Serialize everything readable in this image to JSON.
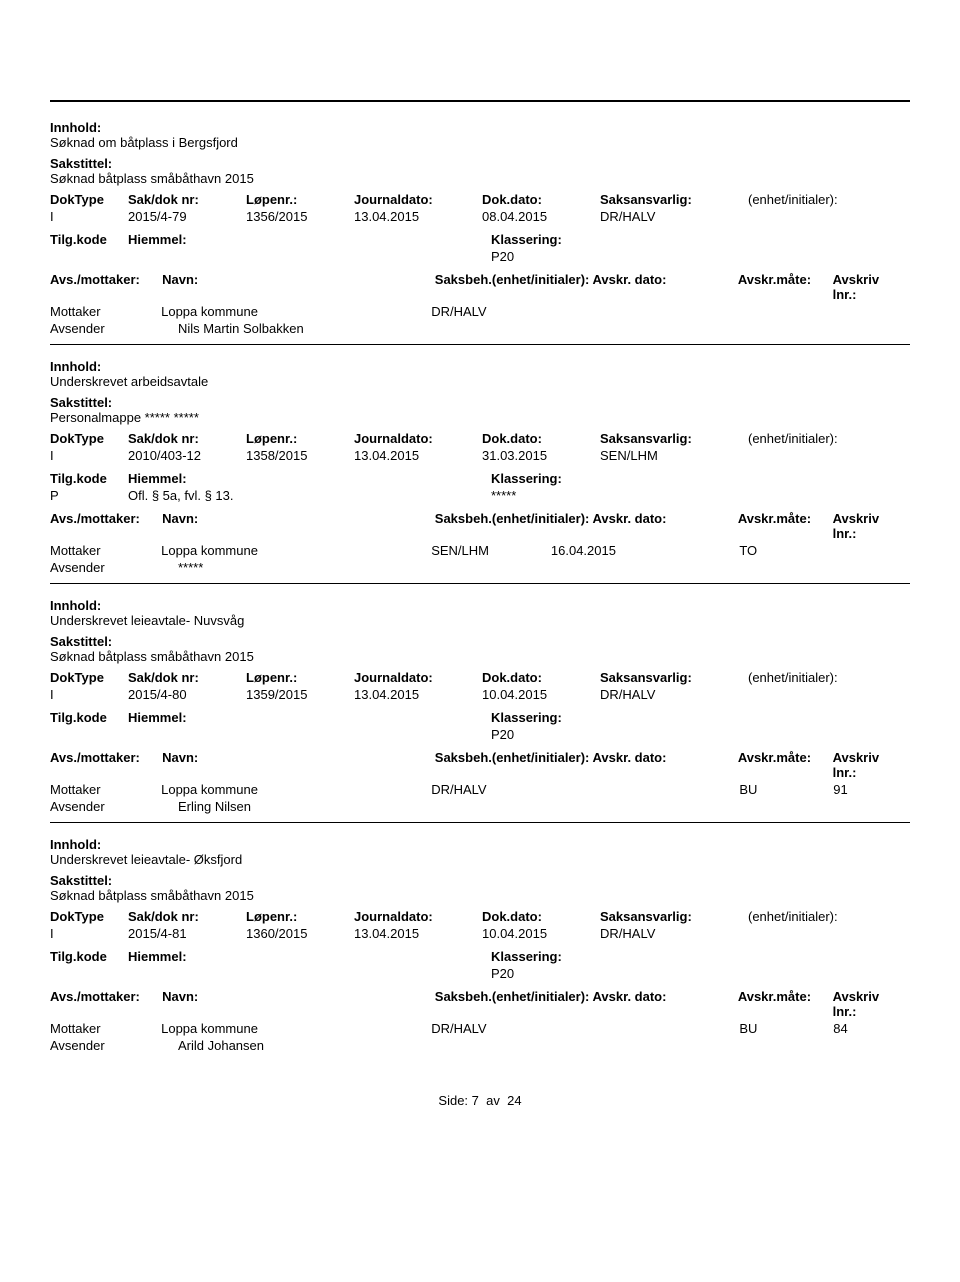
{
  "labels": {
    "innhold": "Innhold:",
    "sakstittel": "Sakstittel:",
    "doktype": "DokType",
    "sakdok": "Sak/dok nr:",
    "lopenr": "Løpenr.:",
    "journaldato": "Journaldato:",
    "dokdato": "Dok.dato:",
    "saksansvarlig": "Saksansvarlig:",
    "enhet": "(enhet/initialer):",
    "tilgkode": "Tilg.kode",
    "hiemmel": "Hiemmel:",
    "klassering": "Klassering:",
    "avsmottaker": "Avs./mottaker:",
    "navn": "Navn:",
    "saksbeh_full": "Saksbeh.(enhet/initialer): Avskr. dato:",
    "avskrmate": "Avskr.måte:",
    "avskrivlnr": "Avskriv lnr.:",
    "mottaker": "Mottaker",
    "avsender": "Avsender"
  },
  "entries": [
    {
      "innhold": "Søknad om båtplass i Bergsfjord",
      "sakstittel": "Søknad båtplass småbåthavn 2015",
      "doktype": "I",
      "sakdok": "2015/4-79",
      "lopenr": "1356/2015",
      "journaldato": "13.04.2015",
      "dokdato": "08.04.2015",
      "saksansvarlig": "DR/HALV",
      "tilgkode": "",
      "hiemmel": "",
      "klassering": "P20",
      "saksbeh": "DR/HALV",
      "avskr_dato": "",
      "avskr_mate": "",
      "avskr_lnr": "",
      "mottaker_navn": "Loppa kommune",
      "avsender_navn": "Nils Martin Solbakken"
    },
    {
      "innhold": "Underskrevet arbeidsavtale",
      "sakstittel": "Personalmappe ***** *****",
      "doktype": "I",
      "sakdok": "2010/403-12",
      "lopenr": "1358/2015",
      "journaldato": "13.04.2015",
      "dokdato": "31.03.2015",
      "saksansvarlig": "SEN/LHM",
      "tilgkode": "P",
      "hiemmel": "Ofl. § 5a, fvl. § 13.",
      "klassering": "*****",
      "saksbeh": "SEN/LHM",
      "avskr_dato": "16.04.2015",
      "avskr_mate": "TO",
      "avskr_lnr": "",
      "mottaker_navn": "Loppa kommune",
      "avsender_navn": "*****"
    },
    {
      "innhold": "Underskrevet leieavtale- Nuvsvåg",
      "sakstittel": "Søknad båtplass småbåthavn 2015",
      "doktype": "I",
      "sakdok": "2015/4-80",
      "lopenr": "1359/2015",
      "journaldato": "13.04.2015",
      "dokdato": "10.04.2015",
      "saksansvarlig": "DR/HALV",
      "tilgkode": "",
      "hiemmel": "",
      "klassering": "P20",
      "saksbeh": "DR/HALV",
      "avskr_dato": "",
      "avskr_mate": "BU",
      "avskr_lnr": "91",
      "mottaker_navn": "Loppa kommune",
      "avsender_navn": "Erling Nilsen"
    },
    {
      "innhold": "Underskrevet leieavtale- Øksfjord",
      "sakstittel": "Søknad båtplass småbåthavn 2015",
      "doktype": "I",
      "sakdok": "2015/4-81",
      "lopenr": "1360/2015",
      "journaldato": "13.04.2015",
      "dokdato": "10.04.2015",
      "saksansvarlig": "DR/HALV",
      "tilgkode": "",
      "hiemmel": "",
      "klassering": "P20",
      "saksbeh": "DR/HALV",
      "avskr_dato": "",
      "avskr_mate": "BU",
      "avskr_lnr": "84",
      "mottaker_navn": "Loppa kommune",
      "avsender_navn": "Arild Johansen"
    }
  ],
  "footer": {
    "side_label": "Side:",
    "page": "7",
    "av": "av",
    "total": "24"
  }
}
